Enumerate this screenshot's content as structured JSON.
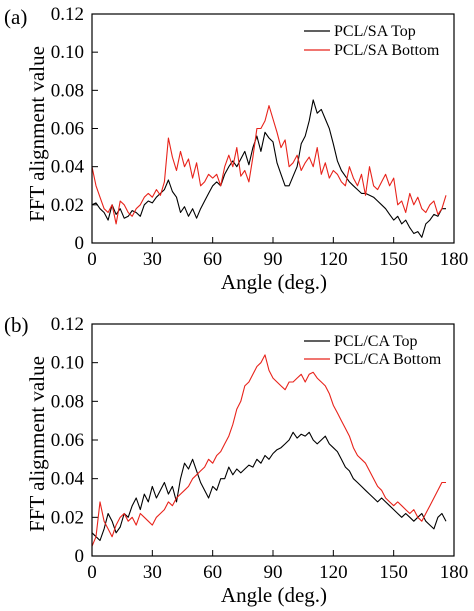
{
  "chart_data": [
    {
      "type": "line",
      "panel_label": "(a)",
      "xlabel": "Angle (deg.)",
      "ylabel": "FFT alignment value",
      "xlim": [
        0,
        180
      ],
      "ylim": [
        0,
        0.12
      ],
      "x_ticks": [
        "0",
        "30",
        "60",
        "90",
        "120",
        "150",
        "180"
      ],
      "y_ticks": [
        "0",
        "0.02",
        "0.04",
        "0.06",
        "0.08",
        "0.10",
        "0.12"
      ],
      "grid": false,
      "legend_position": "top-right",
      "x_step": 2,
      "series": [
        {
          "name": "PCL/SA Top",
          "color": "#000000",
          "values": [
            0.02,
            0.021,
            0.018,
            0.016,
            0.012,
            0.02,
            0.015,
            0.018,
            0.013,
            0.014,
            0.017,
            0.016,
            0.014,
            0.02,
            0.022,
            0.021,
            0.024,
            0.026,
            0.028,
            0.033,
            0.027,
            0.024,
            0.016,
            0.019,
            0.014,
            0.018,
            0.013,
            0.018,
            0.022,
            0.026,
            0.03,
            0.032,
            0.03,
            0.036,
            0.04,
            0.043,
            0.04,
            0.044,
            0.048,
            0.041,
            0.05,
            0.056,
            0.048,
            0.058,
            0.055,
            0.053,
            0.042,
            0.036,
            0.03,
            0.03,
            0.035,
            0.04,
            0.052,
            0.056,
            0.064,
            0.075,
            0.068,
            0.07,
            0.065,
            0.06,
            0.052,
            0.043,
            0.038,
            0.035,
            0.032,
            0.03,
            0.028,
            0.026,
            0.026,
            0.025,
            0.024,
            0.022,
            0.02,
            0.018,
            0.015,
            0.012,
            0.014,
            0.01,
            0.012,
            0.008,
            0.005,
            0.006,
            0.003,
            0.01,
            0.012,
            0.015,
            0.014,
            0.018,
            0.018
          ]
        },
        {
          "name": "PCL/SA Bottom",
          "color": "#e8231b",
          "values": [
            0.04,
            0.03,
            0.024,
            0.018,
            0.016,
            0.02,
            0.01,
            0.022,
            0.02,
            0.016,
            0.014,
            0.018,
            0.02,
            0.024,
            0.026,
            0.024,
            0.028,
            0.025,
            0.032,
            0.055,
            0.045,
            0.038,
            0.048,
            0.04,
            0.044,
            0.034,
            0.042,
            0.03,
            0.032,
            0.036,
            0.034,
            0.036,
            0.03,
            0.04,
            0.046,
            0.04,
            0.05,
            0.035,
            0.038,
            0.032,
            0.045,
            0.06,
            0.06,
            0.064,
            0.072,
            0.065,
            0.058,
            0.05,
            0.054,
            0.04,
            0.042,
            0.046,
            0.038,
            0.042,
            0.045,
            0.04,
            0.05,
            0.036,
            0.042,
            0.034,
            0.038,
            0.036,
            0.032,
            0.03,
            0.04,
            0.034,
            0.03,
            0.036,
            0.025,
            0.04,
            0.03,
            0.028,
            0.032,
            0.036,
            0.03,
            0.034,
            0.02,
            0.022,
            0.016,
            0.026,
            0.02,
            0.024,
            0.018,
            0.016,
            0.02,
            0.022,
            0.015,
            0.018,
            0.025
          ]
        }
      ]
    },
    {
      "type": "line",
      "panel_label": "(b)",
      "xlabel": "Angle (deg.)",
      "ylabel": "FFT alignment value",
      "xlim": [
        0,
        180
      ],
      "ylim": [
        0,
        0.12
      ],
      "x_ticks": [
        "0",
        "30",
        "60",
        "90",
        "120",
        "150",
        "180"
      ],
      "y_ticks": [
        "0",
        "0.02",
        "0.04",
        "0.06",
        "0.08",
        "0.10",
        "0.12"
      ],
      "grid": false,
      "legend_position": "top-right",
      "x_step": 2,
      "series": [
        {
          "name": "PCL/CA Top",
          "color": "#000000",
          "values": [
            0.012,
            0.01,
            0.008,
            0.014,
            0.022,
            0.018,
            0.012,
            0.015,
            0.022,
            0.02,
            0.026,
            0.03,
            0.024,
            0.032,
            0.028,
            0.036,
            0.03,
            0.034,
            0.038,
            0.032,
            0.036,
            0.028,
            0.04,
            0.048,
            0.045,
            0.05,
            0.044,
            0.038,
            0.034,
            0.03,
            0.036,
            0.034,
            0.04,
            0.04,
            0.046,
            0.042,
            0.045,
            0.043,
            0.045,
            0.047,
            0.046,
            0.05,
            0.048,
            0.052,
            0.05,
            0.053,
            0.055,
            0.056,
            0.058,
            0.06,
            0.064,
            0.061,
            0.063,
            0.062,
            0.064,
            0.06,
            0.058,
            0.06,
            0.062,
            0.058,
            0.056,
            0.054,
            0.05,
            0.046,
            0.044,
            0.04,
            0.038,
            0.036,
            0.034,
            0.032,
            0.03,
            0.028,
            0.03,
            0.028,
            0.026,
            0.024,
            0.022,
            0.02,
            0.022,
            0.02,
            0.018,
            0.02,
            0.022,
            0.018,
            0.016,
            0.014,
            0.02,
            0.022,
            0.018
          ]
        },
        {
          "name": "PCL/CA Bottom",
          "color": "#e8231b",
          "values": [
            0.005,
            0.01,
            0.028,
            0.018,
            0.014,
            0.01,
            0.016,
            0.02,
            0.022,
            0.018,
            0.02,
            0.016,
            0.022,
            0.02,
            0.018,
            0.016,
            0.02,
            0.022,
            0.024,
            0.028,
            0.026,
            0.03,
            0.032,
            0.034,
            0.036,
            0.04,
            0.042,
            0.044,
            0.046,
            0.05,
            0.048,
            0.052,
            0.054,
            0.058,
            0.062,
            0.068,
            0.076,
            0.08,
            0.088,
            0.09,
            0.094,
            0.098,
            0.1,
            0.104,
            0.096,
            0.092,
            0.09,
            0.088,
            0.086,
            0.09,
            0.09,
            0.092,
            0.094,
            0.09,
            0.094,
            0.095,
            0.092,
            0.09,
            0.088,
            0.084,
            0.078,
            0.074,
            0.07,
            0.066,
            0.062,
            0.056,
            0.052,
            0.05,
            0.048,
            0.044,
            0.04,
            0.036,
            0.034,
            0.03,
            0.028,
            0.026,
            0.028,
            0.026,
            0.024,
            0.022,
            0.024,
            0.02,
            0.018,
            0.022,
            0.026,
            0.03,
            0.034,
            0.038,
            0.038
          ]
        }
      ]
    }
  ]
}
